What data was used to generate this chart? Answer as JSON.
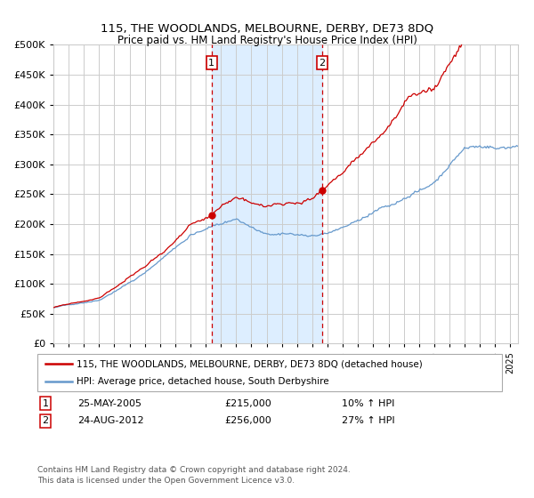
{
  "title": "115, THE WOODLANDS, MELBOURNE, DERBY, DE73 8DQ",
  "subtitle": "Price paid vs. HM Land Registry's House Price Index (HPI)",
  "legend_line1": "115, THE WOODLANDS, MELBOURNE, DERBY, DE73 8DQ (detached house)",
  "legend_line2": "HPI: Average price, detached house, South Derbyshire",
  "annotation1_date": "25-MAY-2005",
  "annotation1_price": "£215,000",
  "annotation1_hpi": "10% ↑ HPI",
  "annotation2_date": "24-AUG-2012",
  "annotation2_price": "£256,000",
  "annotation2_hpi": "27% ↑ HPI",
  "footnote1": "Contains HM Land Registry data © Crown copyright and database right 2024.",
  "footnote2": "This data is licensed under the Open Government Licence v3.0.",
  "sale1_year": 2005.39,
  "sale1_value": 215000,
  "sale2_year": 2012.65,
  "sale2_value": 256000,
  "red_color": "#cc0000",
  "blue_color": "#6699cc",
  "shade_color": "#ddeeff",
  "grid_color": "#cccccc",
  "ylim": [
    0,
    500000
  ],
  "xlim_start": 1995.0,
  "xlim_end": 2025.5
}
